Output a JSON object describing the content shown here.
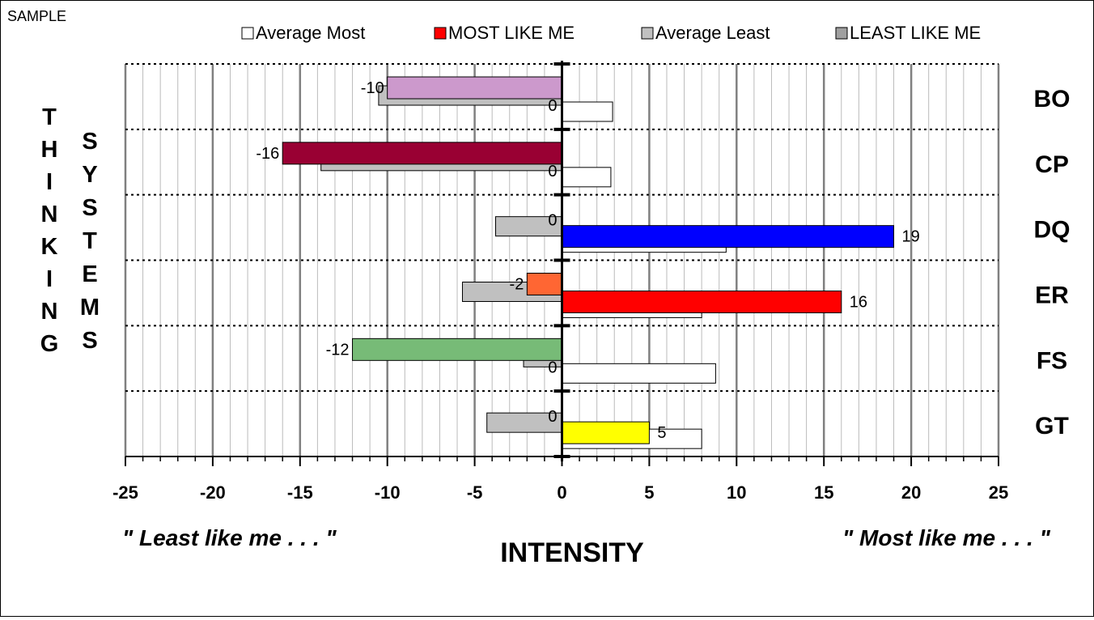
{
  "sample_label": "SAMPLE",
  "legend": [
    {
      "label": "Average Most",
      "color": "#ffffff"
    },
    {
      "label": "MOST LIKE ME",
      "color": "#ff0000"
    },
    {
      "label": "Average Least",
      "color": "#c0c0c0"
    },
    {
      "label": "LEAST LIKE ME",
      "color": "#a0a0a0"
    }
  ],
  "side_label_left": "THINKING",
  "side_label_right": "SYSTEMS",
  "x_left_caption": "\" Least like me . . . \"",
  "x_right_caption": "\" Most like me . . . \"",
  "chart_data": {
    "type": "bar",
    "orientation": "horizontal",
    "xlabel": "INTENSITY",
    "xlim": [
      -25,
      25
    ],
    "x_ticks": [
      -25,
      -20,
      -15,
      -10,
      -5,
      0,
      5,
      10,
      15,
      20,
      25
    ],
    "minor_tick_step": 1,
    "grid": true,
    "legend_position": "top",
    "categories": [
      "BO",
      "CP",
      "DQ",
      "ER",
      "FS",
      "GT"
    ],
    "least_like_me": {
      "values": [
        -10,
        -16,
        0,
        -2,
        -12,
        0
      ],
      "labels": [
        "-10",
        "-16",
        "0",
        "-2",
        "-12",
        "0"
      ],
      "colors": [
        "#cc99cc",
        "#990033",
        "#c0c0c0",
        "#ff6633",
        "#77bb77",
        "#c0c0c0"
      ]
    },
    "average_least": {
      "values": [
        -10.5,
        -13.8,
        -3.8,
        -5.7,
        -2.2,
        -4.3
      ]
    },
    "most_like_me": {
      "values": [
        0,
        0,
        19,
        16,
        0,
        5
      ],
      "labels": [
        "0",
        "0",
        "19",
        "16",
        "0",
        "5"
      ],
      "colors": [
        "#ffffff",
        "#ffffff",
        "#0000ff",
        "#ff0000",
        "#ffffff",
        "#ffff00"
      ]
    },
    "average_most": {
      "values": [
        2.9,
        2.8,
        9.4,
        8.0,
        8.8,
        8.0
      ]
    }
  }
}
